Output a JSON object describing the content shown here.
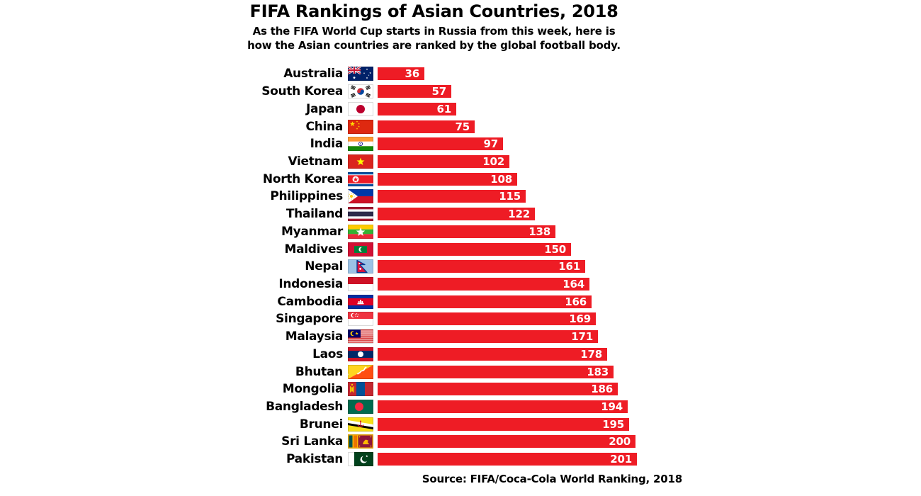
{
  "header": {
    "title": "FIFA Rankings of Asian Countries, 2018",
    "subtitle_line1": "As the FIFA World Cup starts in Russia from this week, here is",
    "subtitle_line2": "how the Asian countries are ranked by the global football body."
  },
  "footer": {
    "source": "Source: FIFA/Coca-Cola World Ranking, 2018"
  },
  "colors": {
    "bar_red": "#EE1C25",
    "value_text": "#FFFFFF",
    "label_text": "#000000",
    "background": "#FFFFFF"
  },
  "chart_data": {
    "type": "bar",
    "orientation": "horizontal",
    "title": "FIFA Rankings of Asian Countries, 2018",
    "xlim": [
      0,
      201
    ],
    "grid": false,
    "legend": "none",
    "categories": [
      "Australia",
      "South Korea",
      "Japan",
      "China",
      "India",
      "Vietnam",
      "North Korea",
      "Philippines",
      "Thailand",
      "Myanmar",
      "Maldives",
      "Nepal",
      "Indonesia",
      "Cambodia",
      "Singapore",
      "Malaysia",
      "Laos",
      "Bhutan",
      "Mongolia",
      "Bangladesh",
      "Brunei",
      "Sri Lanka",
      "Pakistan"
    ],
    "values": [
      36,
      57,
      61,
      75,
      97,
      102,
      108,
      115,
      122,
      138,
      150,
      161,
      164,
      166,
      169,
      171,
      178,
      183,
      186,
      194,
      195,
      200,
      201
    ],
    "flag_icons": [
      "australia-flag-icon",
      "south-korea-flag-icon",
      "japan-flag-icon",
      "china-flag-icon",
      "india-flag-icon",
      "vietnam-flag-icon",
      "north-korea-flag-icon",
      "philippines-flag-icon",
      "thailand-flag-icon",
      "myanmar-flag-icon",
      "maldives-flag-icon",
      "nepal-flag-icon",
      "indonesia-flag-icon",
      "cambodia-flag-icon",
      "singapore-flag-icon",
      "malaysia-flag-icon",
      "laos-flag-icon",
      "bhutan-flag-icon",
      "mongolia-flag-icon",
      "bangladesh-flag-icon",
      "brunei-flag-icon",
      "sri-lanka-flag-icon",
      "pakistan-flag-icon"
    ]
  }
}
